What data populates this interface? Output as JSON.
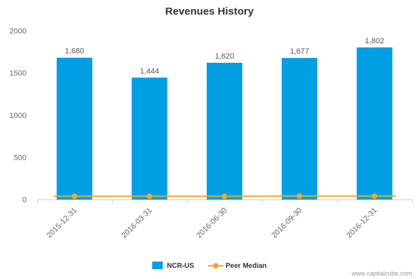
{
  "chart_data": {
    "type": "bar",
    "title": "Revenues History",
    "xlabel": "",
    "ylabel": "",
    "ylim": [
      0,
      2000
    ],
    "yticks": [
      "0",
      "500",
      "1000",
      "1500",
      "2000"
    ],
    "ytick_values": [
      0,
      500,
      1000,
      1500,
      2000
    ],
    "categories": [
      "2015-12-31",
      "2016-03-31",
      "2016-06-30",
      "2016-09-30",
      "2016-12-31"
    ],
    "series": [
      {
        "name": "NCR-US",
        "type": "bar",
        "color": "#009fe3",
        "values": [
          1680,
          1444,
          1620,
          1677,
          1802
        ],
        "labels": [
          "1,680",
          "1,444",
          "1,620",
          "1,677",
          "1,802"
        ]
      },
      {
        "name": "Peer Median",
        "type": "line",
        "color": "#f5a623",
        "values": [
          38,
          38,
          38,
          40,
          40
        ]
      }
    ],
    "legend": "bottom-center",
    "grid": false
  },
  "credit": "www.capitalcube.com"
}
